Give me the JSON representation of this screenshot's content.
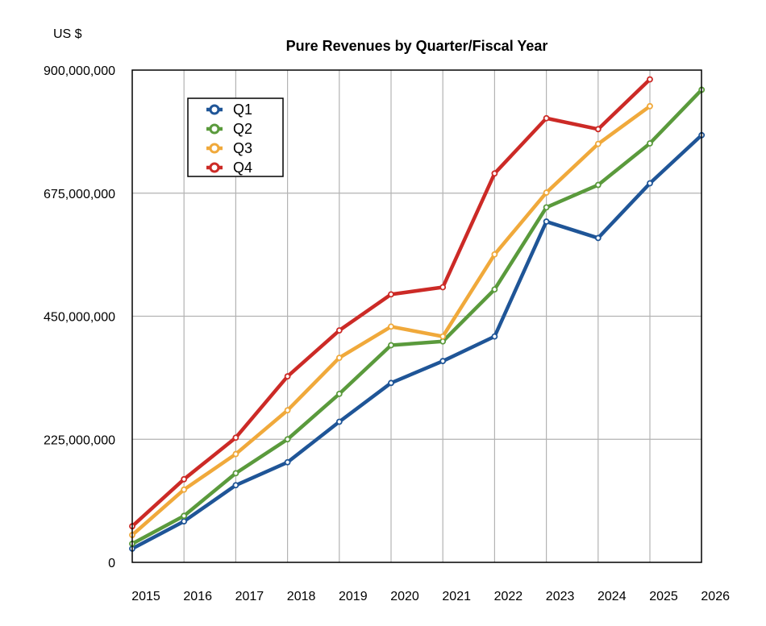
{
  "chart_data": {
    "type": "line",
    "title": "Pure Revenues by Quarter/Fiscal Year",
    "ylabel": "US $",
    "xlabel": "",
    "x": [
      "2015",
      "2016",
      "2017",
      "2018",
      "2019",
      "2020",
      "2021",
      "2022",
      "2023",
      "2024",
      "2025",
      "2026"
    ],
    "ylim": [
      0,
      900000000
    ],
    "yticks": [
      "0",
      "225,000,000",
      "450,000,000",
      "675,000,000",
      "900,000,000"
    ],
    "ytick_values": [
      0,
      225000000,
      450000000,
      675000000,
      900000000
    ],
    "grid": true,
    "legend": "top-left",
    "series": [
      {
        "name": "Q1",
        "color": "#1f5597",
        "values": [
          25000000,
          75000000,
          141000000,
          183000000,
          257000000,
          328000000,
          368000000,
          413000000,
          623000000,
          593000000,
          693000000,
          781000000
        ]
      },
      {
        "name": "Q2",
        "color": "#5a9a3c",
        "values": [
          34000000,
          85000000,
          163000000,
          225000000,
          308000000,
          397000000,
          404000000,
          499000000,
          649000000,
          690000000,
          766000000,
          864000000
        ]
      },
      {
        "name": "Q3",
        "color": "#f0a93b",
        "values": [
          50000000,
          133000000,
          198000000,
          278000000,
          374000000,
          431000000,
          413000000,
          563000000,
          676000000,
          765000000,
          834000000,
          null
        ]
      },
      {
        "name": "Q4",
        "color": "#cc2a26",
        "values": [
          66000000,
          152000000,
          228000000,
          340000000,
          424000000,
          490000000,
          503000000,
          711000000,
          812000000,
          792000000,
          883000000,
          null
        ]
      }
    ]
  }
}
